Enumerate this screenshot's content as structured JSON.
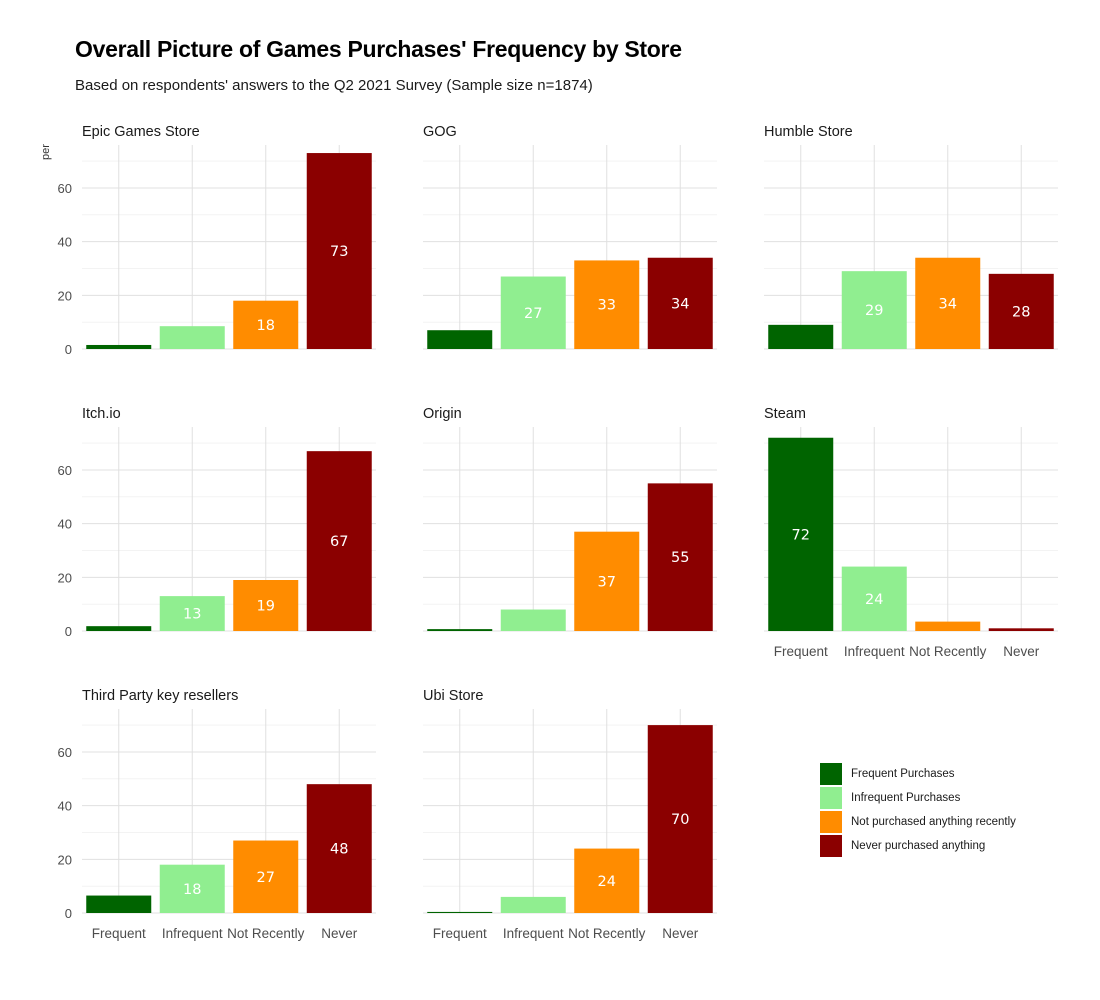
{
  "title": "Overall Picture of Games Purchases' Frequency by Store",
  "subtitle": "Based on respondents' answers to the Q2 2021 Survey (Sample size n=1874)",
  "legend": [
    {
      "label": "Frequent Purchases",
      "color": "#006400"
    },
    {
      "label": "Infrequent Purchases",
      "color": "#90EE90"
    },
    {
      "label": "Not purchased anything recently",
      "color": "#FF8C00"
    },
    {
      "label": "Never purchased anything",
      "color": "#8B0000"
    }
  ],
  "chart_data": {
    "type": "bar",
    "ylabel": "per",
    "xlabel": "",
    "categories": [
      "Frequent",
      "Infrequent",
      "Not Recently",
      "Never"
    ],
    "yticks": [
      0,
      20,
      40,
      60
    ],
    "ylim": [
      0,
      76
    ],
    "grid": true,
    "legend_position": "bottom-right",
    "panels": [
      {
        "title": "Epic Games Store",
        "values": [
          1.5,
          8.5,
          18,
          73
        ],
        "labels": [
          "",
          "",
          "18",
          "73"
        ]
      },
      {
        "title": "GOG",
        "values": [
          7,
          27,
          33,
          34
        ],
        "labels": [
          "",
          "27",
          "33",
          "34"
        ]
      },
      {
        "title": "Humble Store",
        "values": [
          9,
          29,
          34,
          28
        ],
        "labels": [
          "",
          "29",
          "34",
          "28"
        ]
      },
      {
        "title": "Itch.io",
        "values": [
          1.8,
          13,
          19,
          67
        ],
        "labels": [
          "",
          "13",
          "19",
          "67"
        ]
      },
      {
        "title": "Origin",
        "values": [
          0.7,
          8,
          37,
          55
        ],
        "labels": [
          "",
          "",
          "37",
          "55"
        ]
      },
      {
        "title": "Steam",
        "values": [
          72,
          24,
          3.5,
          1
        ],
        "labels": [
          "72",
          "24",
          "",
          ""
        ]
      },
      {
        "title": "Third Party key resellers",
        "values": [
          6.5,
          18,
          27,
          48
        ],
        "labels": [
          "",
          "18",
          "27",
          "48"
        ]
      },
      {
        "title": "Ubi Store",
        "values": [
          0.4,
          6,
          24,
          70
        ],
        "labels": [
          "",
          "",
          "24",
          "70"
        ]
      }
    ]
  }
}
